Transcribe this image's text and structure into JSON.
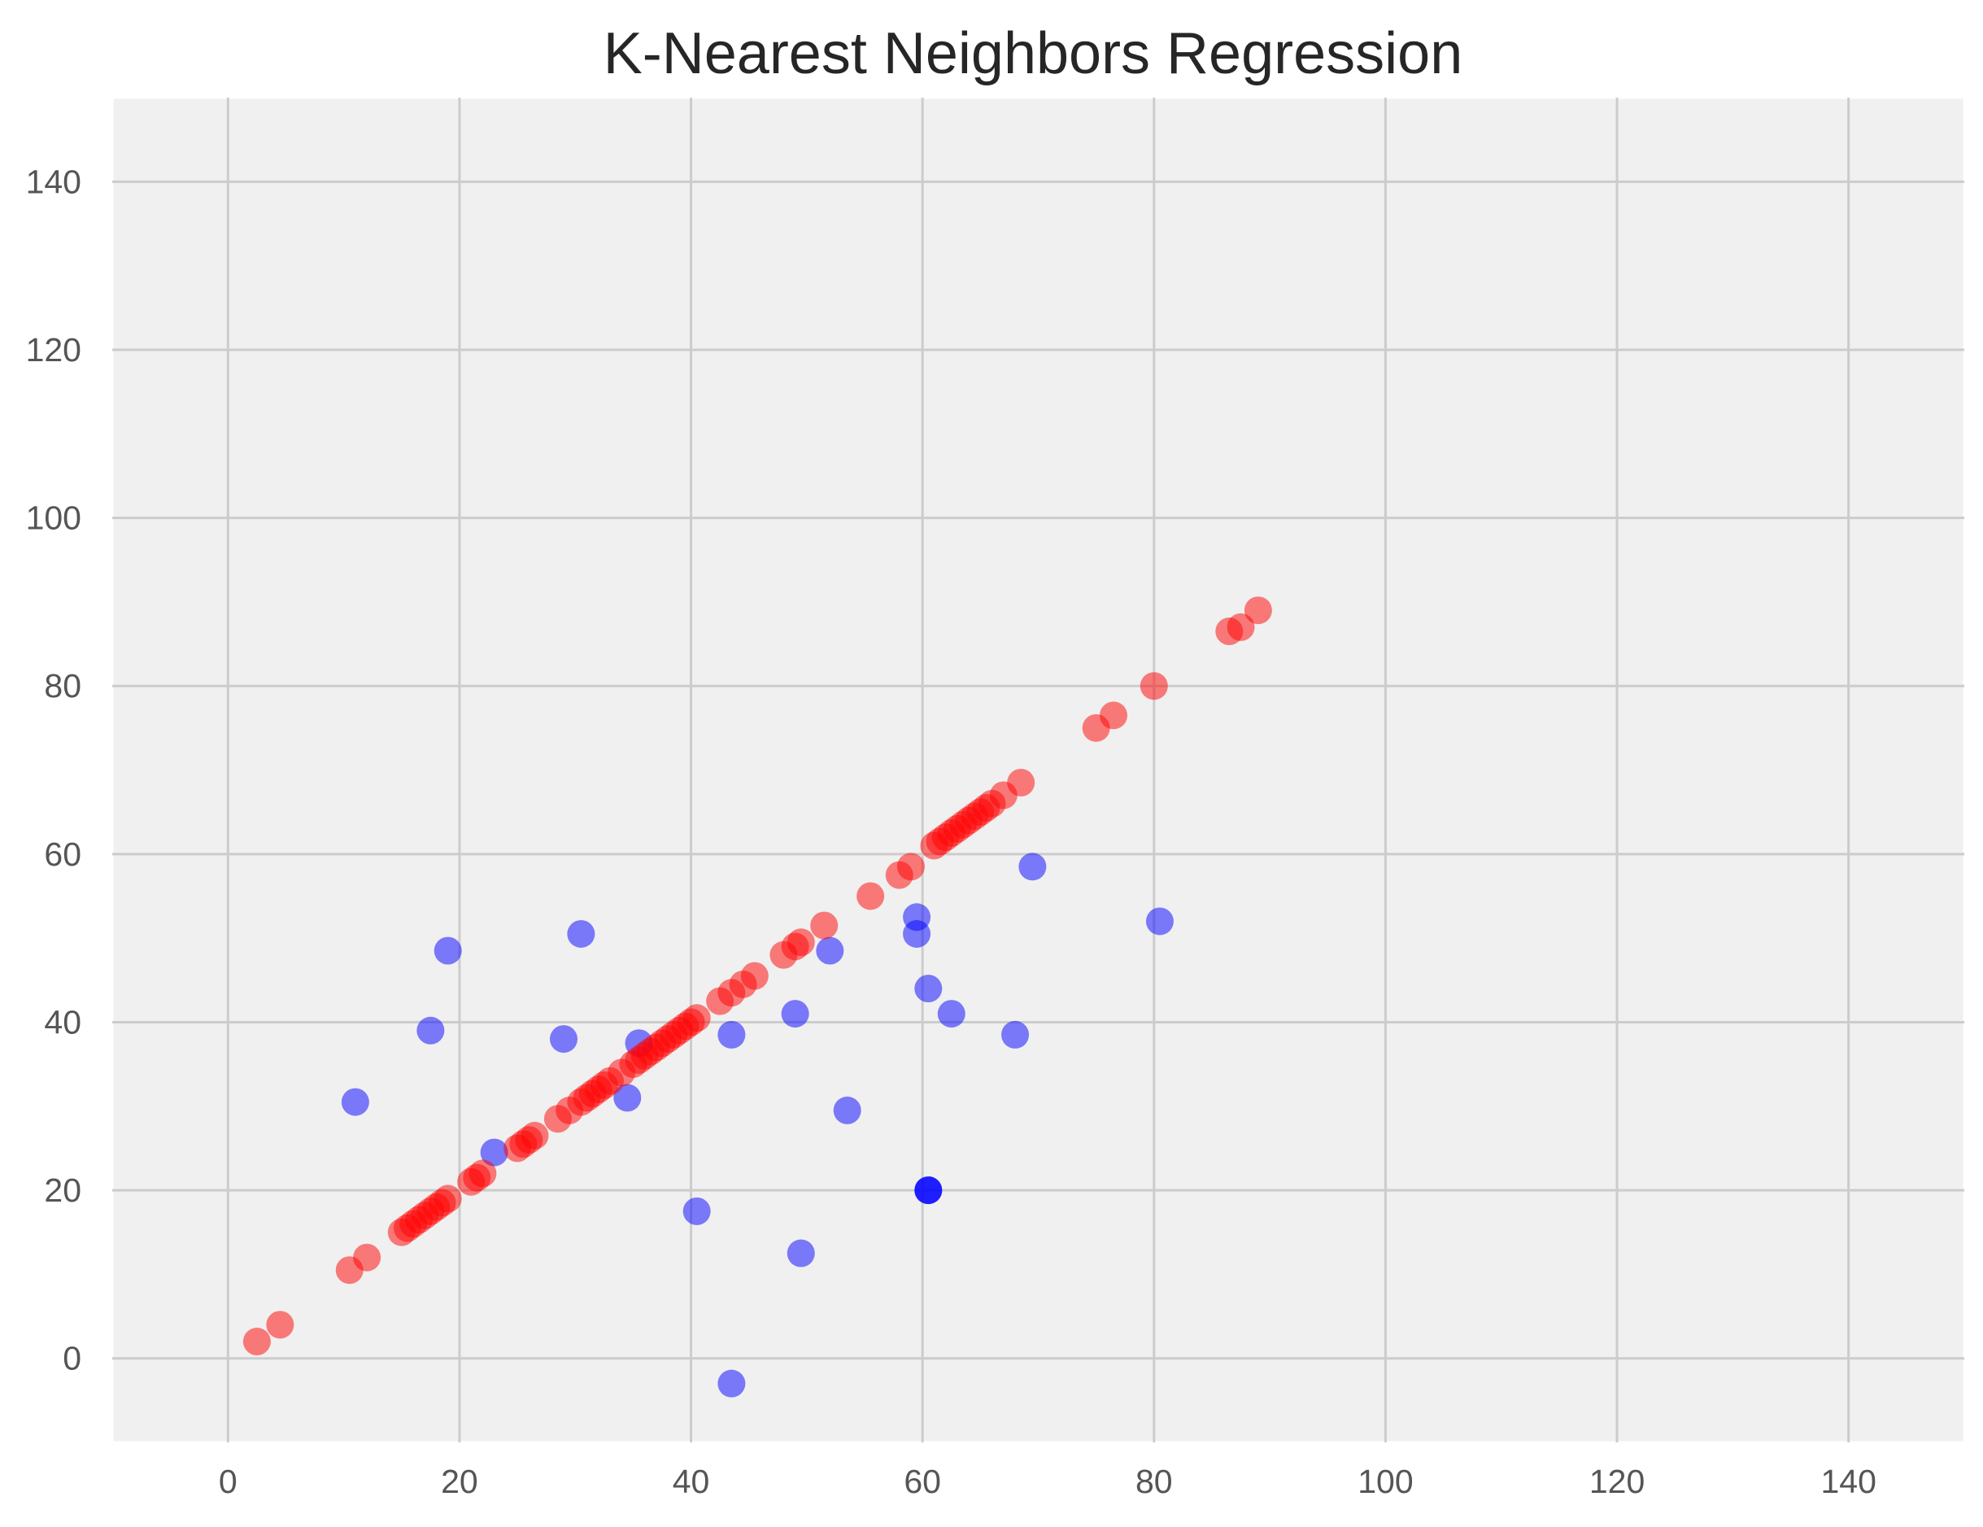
{
  "chart_data": {
    "type": "scatter",
    "title": "K-Nearest Neighbors Regression",
    "xlabel": "",
    "ylabel": "",
    "xlim": [
      -10,
      150
    ],
    "ylim": [
      -10,
      150
    ],
    "x_ticks": [
      0,
      20,
      40,
      60,
      80,
      100,
      120,
      140
    ],
    "y_ticks": [
      0,
      20,
      40,
      60,
      80,
      100,
      120,
      140
    ],
    "grid": true,
    "background_color": "#f0f0f0",
    "grid_color": "#cccccc",
    "series": [
      {
        "color": "#0000ff",
        "alpha": 0.5,
        "points": [
          [
            11,
            30.5
          ],
          [
            17.5,
            39
          ],
          [
            19,
            48.5
          ],
          [
            23,
            24.5
          ],
          [
            29,
            38
          ],
          [
            30.5,
            50.5
          ],
          [
            34.5,
            31
          ],
          [
            35.5,
            37.5
          ],
          [
            40.5,
            17.5
          ],
          [
            43.5,
            -3
          ],
          [
            43.5,
            38.5
          ],
          [
            49,
            41
          ],
          [
            49.5,
            12.5
          ],
          [
            52,
            48.5
          ],
          [
            53.5,
            29.5
          ],
          [
            59.5,
            52.5
          ],
          [
            59.5,
            50.5
          ],
          [
            60.5,
            44
          ],
          [
            60.5,
            20
          ],
          [
            60.5,
            20
          ],
          [
            60.5,
            20
          ],
          [
            62.5,
            41
          ],
          [
            68,
            38.5
          ],
          [
            69.5,
            58.5
          ],
          [
            80.5,
            52
          ]
        ]
      },
      {
        "color": "#ff0000",
        "alpha": 0.5,
        "points": [
          [
            2.5,
            2
          ],
          [
            4.5,
            4
          ],
          [
            10.5,
            10.5
          ],
          [
            12,
            12
          ],
          [
            15,
            15
          ],
          [
            15.5,
            15.5
          ],
          [
            16,
            16
          ],
          [
            16.5,
            16.5
          ],
          [
            17,
            17
          ],
          [
            17.5,
            17.5
          ],
          [
            18,
            18
          ],
          [
            18.5,
            18.5
          ],
          [
            19,
            19
          ],
          [
            21,
            21
          ],
          [
            21.5,
            21.5
          ],
          [
            22,
            22
          ],
          [
            25,
            25
          ],
          [
            25.5,
            25.5
          ],
          [
            26,
            26
          ],
          [
            26.5,
            26.5
          ],
          [
            28.5,
            28.5
          ],
          [
            29.5,
            29.5
          ],
          [
            30.5,
            30.5
          ],
          [
            31,
            31
          ],
          [
            31.5,
            31.5
          ],
          [
            32,
            32
          ],
          [
            32.5,
            32.5
          ],
          [
            33,
            33
          ],
          [
            34,
            34
          ],
          [
            35,
            35
          ],
          [
            35.5,
            35.5
          ],
          [
            36,
            36
          ],
          [
            36.5,
            36.5
          ],
          [
            37,
            37
          ],
          [
            37.5,
            37.5
          ],
          [
            38,
            38
          ],
          [
            38.5,
            38.5
          ],
          [
            39,
            39
          ],
          [
            39.5,
            39.5
          ],
          [
            40,
            40
          ],
          [
            40.5,
            40.5
          ],
          [
            42.5,
            42.5
          ],
          [
            43.5,
            43.5
          ],
          [
            44.5,
            44.5
          ],
          [
            45.5,
            45.5
          ],
          [
            48,
            48
          ],
          [
            49,
            49
          ],
          [
            49.5,
            49.5
          ],
          [
            51.5,
            51.5
          ],
          [
            55.5,
            55
          ],
          [
            58,
            57.5
          ],
          [
            59,
            58.5
          ],
          [
            61,
            61
          ],
          [
            61.5,
            61.5
          ],
          [
            62,
            62
          ],
          [
            62.5,
            62.5
          ],
          [
            63,
            63
          ],
          [
            63.5,
            63.5
          ],
          [
            64,
            64
          ],
          [
            64.5,
            64.5
          ],
          [
            65,
            65
          ],
          [
            65.5,
            65.5
          ],
          [
            66,
            66
          ],
          [
            67,
            67
          ],
          [
            68.5,
            68.5
          ],
          [
            75,
            75
          ],
          [
            76.5,
            76.5
          ],
          [
            80,
            80
          ],
          [
            86.5,
            86.5
          ],
          [
            87.5,
            87
          ],
          [
            89,
            89
          ]
        ]
      }
    ]
  }
}
